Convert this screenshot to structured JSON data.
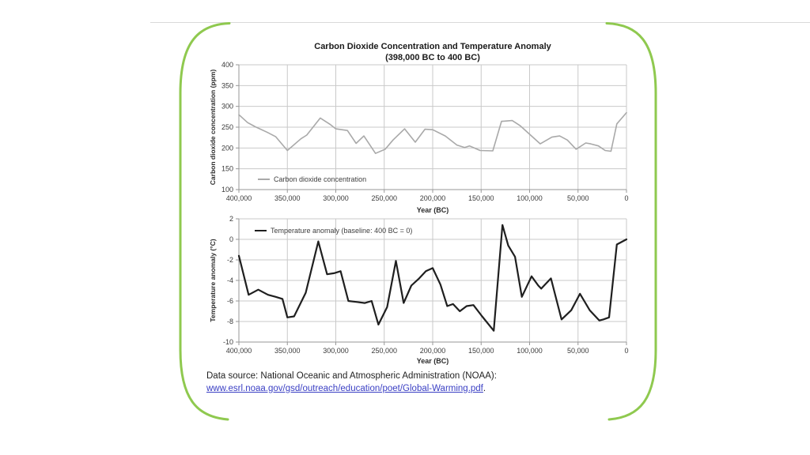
{
  "slide": {
    "source_prefix": "Data source: National Oceanic and Atmospheric Administration (NOAA):",
    "source_link": "www.esrl.noaa.gov/gsd/outreach/education/poet/Global-Warming.pdf",
    "source_suffix": "."
  },
  "colors": {
    "border_green": "#8fc94f",
    "divider_gray": "#d9d9d9",
    "grid": "#c9c9c9",
    "axis": "#979797",
    "tick_text": "#3a3a3a",
    "link": "#3a3fc4"
  },
  "chart_data": [
    {
      "type": "line",
      "name": "co2",
      "title": "Carbon Dioxide Concentration and Temperature Anomaly",
      "subtitle": "(398,000 BC to 400 BC)",
      "xlabel": "Year (BC)",
      "ylabel": "Carbon dioxide concentration (ppm)",
      "legend": "Carbon dioxide concentration",
      "line_color": "#a9a9a9",
      "line_width": 1.6,
      "x_axis_reversed": true,
      "grid": true,
      "legend_position": "bottom-left-inside",
      "xlim": [
        400000,
        0
      ],
      "ylim": [
        100,
        400
      ],
      "x_tick_values": [
        400000,
        350000,
        300000,
        250000,
        200000,
        150000,
        100000,
        50000,
        0
      ],
      "x_tick_labels": [
        "400,000",
        "350,000",
        "300,000",
        "250,000",
        "200,000",
        "150,000",
        "100,000",
        "50,000",
        "0"
      ],
      "y_tick_values": [
        400,
        350,
        300,
        250,
        200,
        150,
        100
      ],
      "y_tick_labels": [
        "400",
        "350",
        "300",
        "250",
        "200",
        "150",
        "100"
      ],
      "points": [
        [
          400000,
          280
        ],
        [
          391000,
          261
        ],
        [
          383000,
          251
        ],
        [
          371000,
          238
        ],
        [
          362000,
          227
        ],
        [
          350000,
          194
        ],
        [
          336000,
          222
        ],
        [
          330000,
          231
        ],
        [
          316000,
          272
        ],
        [
          306000,
          257
        ],
        [
          300000,
          246
        ],
        [
          288000,
          242
        ],
        [
          279000,
          211
        ],
        [
          271000,
          229
        ],
        [
          259000,
          187
        ],
        [
          249000,
          197
        ],
        [
          241000,
          219
        ],
        [
          229000,
          246
        ],
        [
          218000,
          214
        ],
        [
          208000,
          245
        ],
        [
          200000,
          244
        ],
        [
          187000,
          229
        ],
        [
          175000,
          207
        ],
        [
          167000,
          201
        ],
        [
          162000,
          205
        ],
        [
          156000,
          199
        ],
        [
          151000,
          194
        ],
        [
          138000,
          193
        ],
        [
          129000,
          264
        ],
        [
          118000,
          266
        ],
        [
          110000,
          254
        ],
        [
          99000,
          231
        ],
        [
          89000,
          210
        ],
        [
          77000,
          226
        ],
        [
          69000,
          229
        ],
        [
          61000,
          219
        ],
        [
          52000,
          197
        ],
        [
          42000,
          212
        ],
        [
          37000,
          210
        ],
        [
          29000,
          205
        ],
        [
          22000,
          194
        ],
        [
          16000,
          192
        ],
        [
          10000,
          258
        ],
        [
          0,
          285
        ]
      ]
    },
    {
      "type": "line",
      "name": "temp",
      "xlabel": "Year (BC)",
      "ylabel": "Temperature anomaly (°C)",
      "legend": "Temperature anomaly (baseline: 400 BC = 0)",
      "line_color": "#1f1f1f",
      "line_width": 2.2,
      "x_axis_reversed": true,
      "grid": true,
      "legend_position": "top-left-inside",
      "xlim": [
        400000,
        0
      ],
      "ylim": [
        -10,
        2
      ],
      "x_tick_values": [
        400000,
        350000,
        300000,
        250000,
        200000,
        150000,
        100000,
        50000,
        0
      ],
      "x_tick_labels": [
        "400,000",
        "350,000",
        "300,000",
        "250,000",
        "200,000",
        "150,000",
        "100,000",
        "50,000",
        "0"
      ],
      "y_tick_values": [
        2,
        0,
        -2,
        -4,
        -6,
        -8,
        -10
      ],
      "y_tick_labels": [
        "2",
        "0",
        "-2",
        "-4",
        "-6",
        "-8",
        "-10"
      ],
      "points": [
        [
          400000,
          -1.6
        ],
        [
          390000,
          -5.4
        ],
        [
          380000,
          -4.9
        ],
        [
          370000,
          -5.4
        ],
        [
          362000,
          -5.6
        ],
        [
          355000,
          -5.8
        ],
        [
          350000,
          -7.6
        ],
        [
          343000,
          -7.5
        ],
        [
          331000,
          -5.2
        ],
        [
          318000,
          -0.2
        ],
        [
          309000,
          -3.4
        ],
        [
          302000,
          -3.3
        ],
        [
          295000,
          -3.1
        ],
        [
          287000,
          -6.0
        ],
        [
          278000,
          -6.1
        ],
        [
          270000,
          -6.2
        ],
        [
          263000,
          -6.0
        ],
        [
          256000,
          -8.3
        ],
        [
          247000,
          -6.6
        ],
        [
          238000,
          -2.1
        ],
        [
          230000,
          -6.2
        ],
        [
          222000,
          -4.5
        ],
        [
          214000,
          -3.8
        ],
        [
          207000,
          -3.1
        ],
        [
          200000,
          -2.8
        ],
        [
          192000,
          -4.4
        ],
        [
          185000,
          -6.5
        ],
        [
          179000,
          -6.3
        ],
        [
          172000,
          -7.0
        ],
        [
          165000,
          -6.5
        ],
        [
          158000,
          -6.4
        ],
        [
          149000,
          -7.5
        ],
        [
          137000,
          -8.9
        ],
        [
          128000,
          1.4
        ],
        [
          122000,
          -0.6
        ],
        [
          115000,
          -1.7
        ],
        [
          108000,
          -5.6
        ],
        [
          98000,
          -3.6
        ],
        [
          91000,
          -4.5
        ],
        [
          88000,
          -4.8
        ],
        [
          78000,
          -3.8
        ],
        [
          67000,
          -7.8
        ],
        [
          57000,
          -6.9
        ],
        [
          48000,
          -5.3
        ],
        [
          38000,
          -6.9
        ],
        [
          28000,
          -7.9
        ],
        [
          24000,
          -7.8
        ],
        [
          18000,
          -7.6
        ],
        [
          10000,
          -0.5
        ],
        [
          0,
          0
        ]
      ]
    }
  ]
}
